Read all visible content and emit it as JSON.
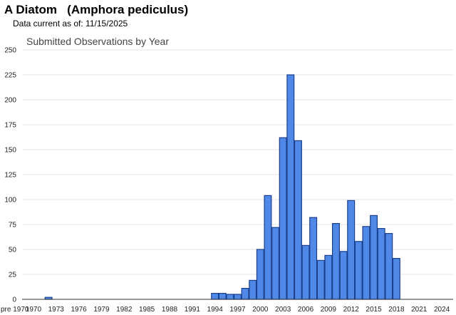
{
  "header": {
    "species_title": "A Diatom   (Amphora pediculus)",
    "data_current_label": "Data current as of:",
    "data_current_date": "11/15/2025"
  },
  "chart_data": {
    "type": "bar",
    "title": "Submitted Observations by Year",
    "xlabel": "",
    "ylabel": "",
    "ylim": [
      0,
      250
    ],
    "yticks": [
      0,
      25,
      50,
      75,
      100,
      125,
      150,
      175,
      200,
      225,
      250
    ],
    "grid": true,
    "legend": "none",
    "bar_color": "#4f88e6",
    "bar_edge_color": "#1b3f8c",
    "categories": [
      "pre 1970",
      "1970",
      "1971",
      "1972",
      "1973",
      "1974",
      "1975",
      "1976",
      "1977",
      "1978",
      "1979",
      "1980",
      "1981",
      "1982",
      "1983",
      "1984",
      "1985",
      "1986",
      "1987",
      "1988",
      "1989",
      "1990",
      "1991",
      "1992",
      "1993",
      "1994",
      "1995",
      "1996",
      "1997",
      "1998",
      "1999",
      "2000",
      "2001",
      "2002",
      "2003",
      "2004",
      "2005",
      "2006",
      "2007",
      "2008",
      "2009",
      "2010",
      "2011",
      "2012",
      "2013",
      "2014",
      "2015",
      "2016",
      "2017",
      "2018",
      "2019",
      "2020",
      "2021",
      "2022",
      "2023",
      "2024",
      "2025"
    ],
    "x_tick_labels": [
      "pre 1970",
      "1970",
      "1973",
      "1976",
      "1979",
      "1982",
      "1985",
      "1988",
      "1991",
      "1994",
      "1997",
      "2000",
      "2003",
      "2006",
      "2009",
      "2012",
      "2015",
      "2018",
      "2021",
      "2024"
    ],
    "values": [
      0,
      0,
      0,
      2,
      0,
      0,
      0,
      0,
      0,
      0,
      0,
      0,
      0,
      0,
      0,
      0,
      0,
      0,
      0,
      0,
      0,
      0,
      0,
      0,
      0,
      6,
      6,
      5,
      5,
      11,
      19,
      50,
      104,
      72,
      162,
      225,
      159,
      54,
      82,
      39,
      44,
      76,
      48,
      99,
      58,
      73,
      84,
      71,
      66,
      41,
      0,
      0,
      0,
      0,
      0,
      0,
      0
    ]
  }
}
